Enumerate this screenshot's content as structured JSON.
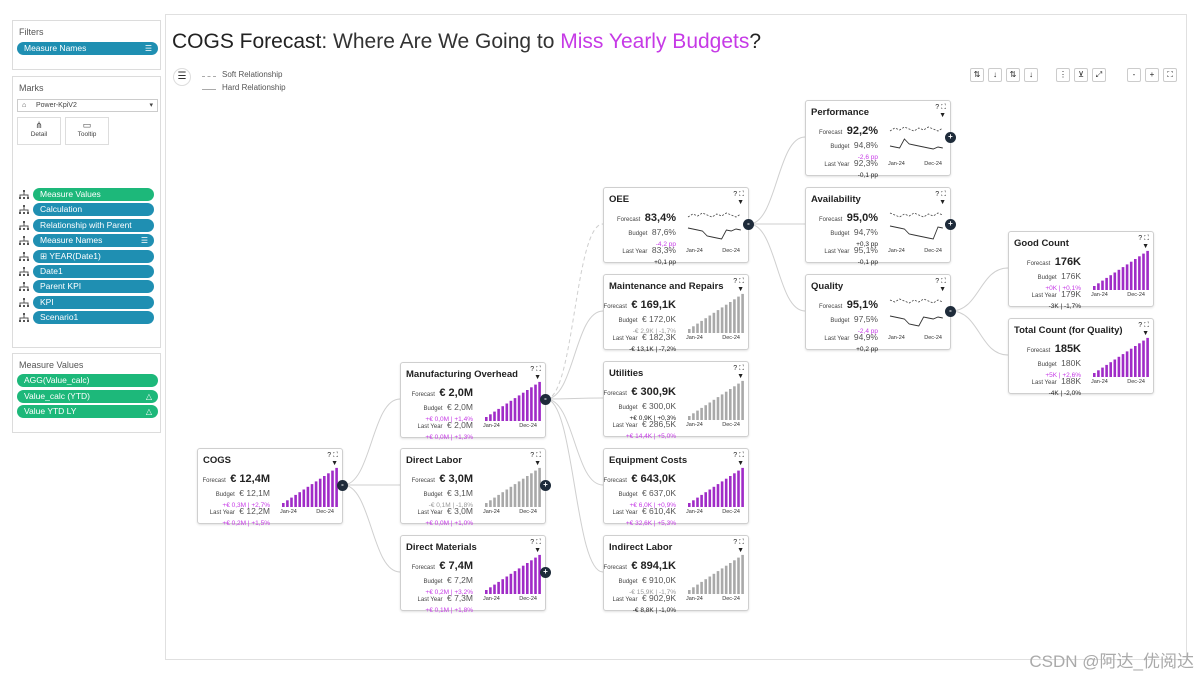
{
  "sidebar": {
    "filters": {
      "title": "Filters",
      "pill": "Measure Names"
    },
    "marks": {
      "title": "Marks",
      "dropdown": "Power-KpiV2",
      "detail": "Detail",
      "tooltip": "Tooltip",
      "fields": [
        "Measure Values",
        "Calculation",
        "Relationship with Parent",
        "Measure Names",
        "⊞ YEAR(Date1)",
        "Date1",
        "Parent KPI",
        "KPI",
        "Scenario1"
      ]
    },
    "measure_values": {
      "title": "Measure Values",
      "fields": [
        "AGG(Value_calc)",
        "Value_calc (YTD)",
        "Value YTD LY"
      ]
    }
  },
  "title": {
    "part1": "COGS Forecast",
    "part2": ": Where Are We Going to ",
    "highlight": "Miss Yearly Budgets",
    "part3": "?"
  },
  "legend": {
    "soft": "Soft Relationship",
    "hard": "Hard Relationship"
  },
  "axis": {
    "start": "Jan-24",
    "end": "Dec-24"
  },
  "labels": {
    "forecast": "Forecast",
    "budget": "Budget",
    "last_year": "Last Year"
  },
  "colors": {
    "accent": "#c63ae6",
    "pill_blue": "#1f8fb2",
    "pill_green": "#1db87a",
    "node": "#1e2b3a",
    "bar_grey": "#a9a9a9"
  },
  "cards": [
    {
      "name": "COGS",
      "forecast": "€ 12,4M",
      "budget": "€ 12,1M",
      "budget_delta": "+€ 0,3M | +2,7%",
      "ly": "€ 12,2M",
      "ly_delta": "+€ 0,2M | +1,5%",
      "chart": "bars",
      "bar_color": "#a02cc7",
      "node": "-"
    },
    {
      "name": "Manufacturing Overhead",
      "forecast": "€ 2,0M",
      "budget": "€ 2,0M",
      "budget_delta": "+€ 0,0M | +1,4%",
      "ly": "€ 2,0M",
      "ly_delta": "+€ 0,0M | +1,3%",
      "chart": "bars",
      "bar_color": "#a02cc7",
      "node": "-"
    },
    {
      "name": "Direct Labor",
      "forecast": "€ 3,0M",
      "budget": "€ 3,1M",
      "budget_delta": "-€ 0,1M | -1,8%",
      "ly": "€ 3,0M",
      "ly_delta": "+€ 0,0M | +1,0%",
      "chart": "bars",
      "bar_color": "#a9a9a9",
      "node": "+"
    },
    {
      "name": "Direct Materials",
      "forecast": "€ 7,4M",
      "budget": "€ 7,2M",
      "budget_delta": "+€ 0,2M | +3,2%",
      "ly": "€ 7,3M",
      "ly_delta": "+€ 0,1M | +1,8%",
      "chart": "bars",
      "bar_color": "#a02cc7",
      "node": "+"
    },
    {
      "name": "OEE",
      "forecast": "83,4%",
      "budget": "87,6%",
      "budget_delta": "-4,2 pp",
      "ly": "83,3%",
      "ly_delta": "+0,1 pp",
      "chart": "line",
      "node": "-"
    },
    {
      "name": "Maintenance and Repairs",
      "forecast": "€ 169,1K",
      "budget": "€ 172,0K",
      "budget_delta": "-€ 2,9K | -1,7%",
      "ly": "€ 182,3K",
      "ly_delta": "-€ 13,1K | -7,2%",
      "chart": "bars",
      "bar_color": "#a9a9a9",
      "node": ""
    },
    {
      "name": "Utilities",
      "forecast": "€ 300,9K",
      "budget": "€ 300,0K",
      "budget_delta": "+€ 0,9K | +0,3%",
      "ly": "€ 286,5K",
      "ly_delta": "+€ 14,4K | +5,0%",
      "chart": "bars",
      "bar_color": "#a9a9a9",
      "node": ""
    },
    {
      "name": "Equipment Costs",
      "forecast": "€ 643,0K",
      "budget": "€ 637,0K",
      "budget_delta": "+€ 6,0K | +0,9%",
      "ly": "€ 610,4K",
      "ly_delta": "+€ 32,6K | +5,3%",
      "chart": "bars",
      "bar_color": "#a02cc7",
      "node": ""
    },
    {
      "name": "Indirect Labor",
      "forecast": "€ 894,1K",
      "budget": "€ 910,0K",
      "budget_delta": "-€ 15,9K | -1,7%",
      "ly": "€ 902,9K",
      "ly_delta": "-€ 8,8K | -1,0%",
      "chart": "bars",
      "bar_color": "#a9a9a9",
      "node": ""
    },
    {
      "name": "Performance",
      "forecast": "92,2%",
      "budget": "94,8%",
      "budget_delta": "-2,6 pp",
      "ly": "92,3%",
      "ly_delta": "-0,1 pp",
      "chart": "line",
      "node": "+"
    },
    {
      "name": "Availability",
      "forecast": "95,0%",
      "budget": "94,7%",
      "budget_delta": "+0,3 pp",
      "ly": "95,1%",
      "ly_delta": "-0,1 pp",
      "chart": "line",
      "node": "+"
    },
    {
      "name": "Quality",
      "forecast": "95,1%",
      "budget": "97,5%",
      "budget_delta": "-2,4 pp",
      "ly": "94,9%",
      "ly_delta": "+0,2 pp",
      "chart": "line",
      "node": "-"
    },
    {
      "name": "Good Count",
      "forecast": "176K",
      "budget": "176K",
      "budget_delta": "+0K | +0,1%",
      "ly": "179K",
      "ly_delta": "-3K | -1,7%",
      "chart": "bars",
      "bar_color": "#a02cc7",
      "node": ""
    },
    {
      "name": "Total Count (for Quality)",
      "forecast": "185K",
      "budget": "180K",
      "budget_delta": "+5K | +2,6%",
      "ly": "188K",
      "ly_delta": "-4K | -2,0%",
      "chart": "bars",
      "bar_color": "#a02cc7",
      "node": ""
    }
  ],
  "toolbar": [
    "⇅",
    "↓",
    "⇅",
    "↓",
    "⋮",
    "⊻",
    "⤢",
    "-",
    "+",
    "⛶"
  ],
  "watermark": "CSDN @阿达_优阅达"
}
